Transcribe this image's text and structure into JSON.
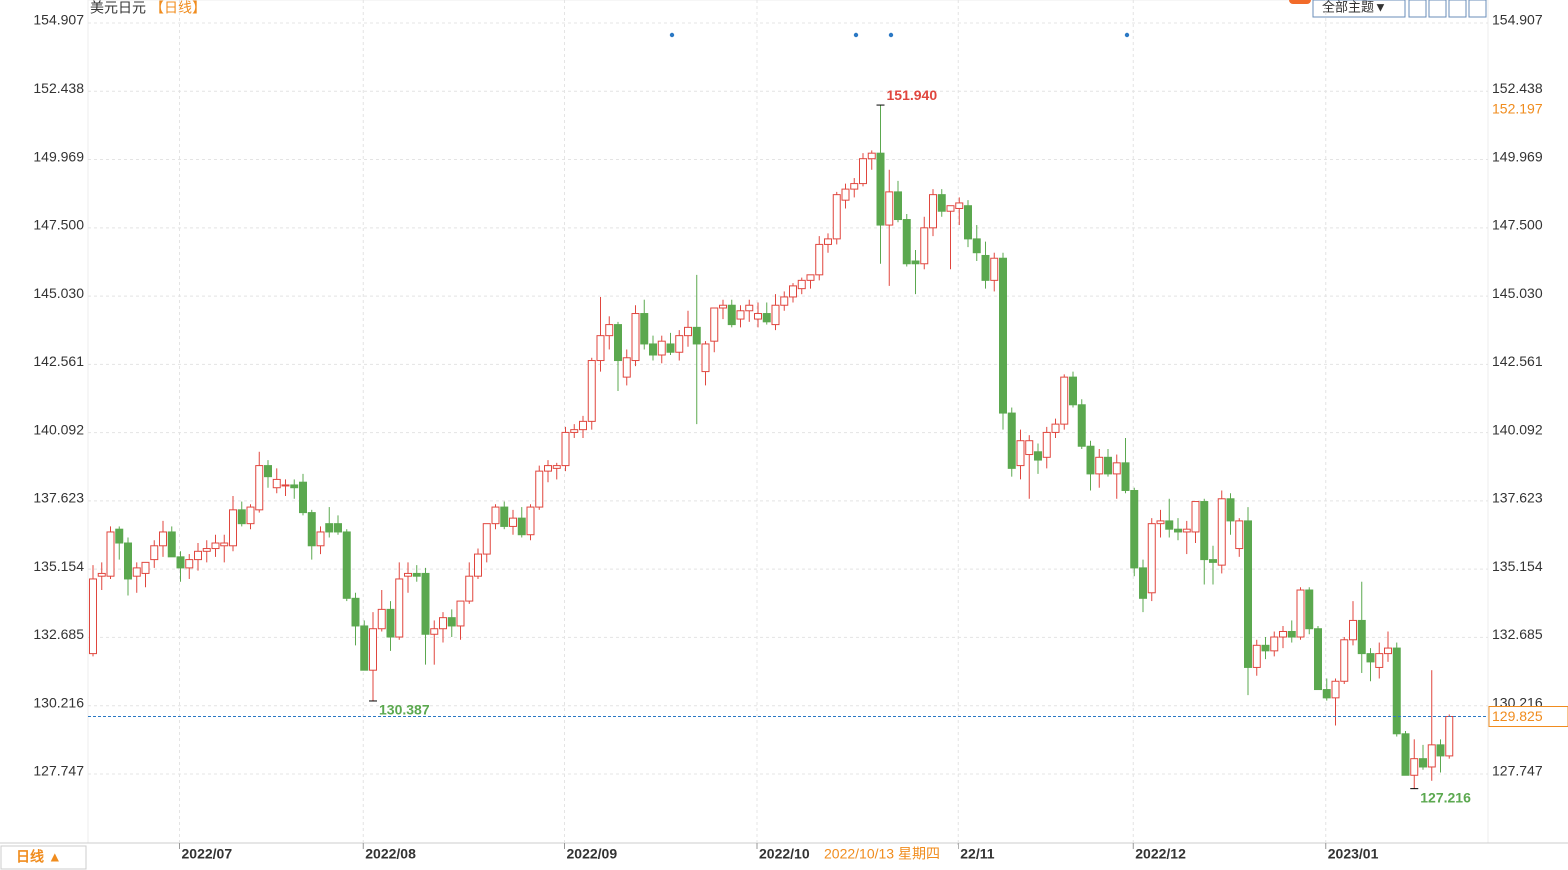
{
  "chart_data": {
    "type": "candlestick",
    "title": "美元日元",
    "period_tag": "【日线】",
    "period_button": "日线 ▲",
    "theme_button": "全部主题▼",
    "crosshair_date": "2022/10/13 星期四",
    "up_color": "#e0463e",
    "down_color": "#5ba84f",
    "grid": true,
    "ylim": [
      125.25,
      155.74
    ],
    "yticks": [
      154.907,
      152.438,
      149.969,
      {
        "value": 147.5,
        "label": "147.500"
      },
      {
        "value": 145.03,
        "label": "145.030"
      },
      142.561,
      140.092,
      137.623,
      135.154,
      132.685,
      130.216,
      127.747
    ],
    "xticks": [
      {
        "value": 10,
        "label": "2022/07"
      },
      {
        "value": 31,
        "label": "2022/08"
      },
      {
        "value": 54,
        "label": "2022/09"
      },
      {
        "value": 76,
        "label": "2022/10"
      },
      {
        "value": 99,
        "label": "22/11"
      },
      {
        "value": 119,
        "label": "2022/12"
      },
      {
        "value": 141,
        "label": "2023/01"
      }
    ],
    "annotations": [
      {
        "value": 151.94,
        "label": "151.940",
        "side": "high"
      },
      {
        "value": 130.387,
        "label": "130.387",
        "side": "low"
      },
      {
        "value": 127.216,
        "label": "127.216",
        "side": "low"
      }
    ],
    "last_price": {
      "value": 129.825,
      "label": "129.825"
    },
    "marker_price": {
      "value": 152.197,
      "label": "152.197"
    },
    "candles": [
      [
        132.1,
        135.3,
        132.0,
        134.8
      ],
      [
        134.9,
        135.4,
        134.4,
        135.0
      ],
      [
        134.9,
        136.7,
        134.8,
        136.5
      ],
      [
        136.6,
        136.7,
        135.5,
        136.1
      ],
      [
        136.1,
        136.3,
        134.2,
        134.8
      ],
      [
        134.9,
        135.4,
        134.3,
        135.2
      ],
      [
        135.0,
        135.4,
        134.5,
        135.4
      ],
      [
        135.5,
        136.2,
        135.2,
        136.0
      ],
      [
        136.0,
        136.9,
        135.6,
        136.5
      ],
      [
        136.5,
        136.7,
        135.6,
        135.6
      ],
      [
        135.6,
        135.8,
        134.7,
        135.2
      ],
      [
        135.2,
        135.7,
        134.8,
        135.5
      ],
      [
        135.5,
        136.1,
        135.1,
        135.8
      ],
      [
        135.8,
        136.2,
        135.4,
        135.9
      ],
      [
        135.9,
        136.4,
        135.6,
        136.1
      ],
      [
        136.0,
        136.4,
        135.4,
        136.1
      ],
      [
        136.0,
        137.8,
        135.8,
        137.3
      ],
      [
        137.3,
        137.6,
        136.7,
        136.8
      ],
      [
        136.8,
        137.5,
        136.6,
        137.4
      ],
      [
        137.3,
        139.4,
        137.2,
        138.9
      ],
      [
        138.9,
        139.1,
        138.1,
        138.5
      ],
      [
        138.1,
        138.8,
        137.9,
        138.4
      ],
      [
        138.2,
        138.4,
        137.8,
        138.2
      ],
      [
        138.2,
        138.4,
        137.7,
        138.1
      ],
      [
        138.3,
        138.6,
        137.1,
        137.2
      ],
      [
        137.2,
        137.3,
        135.5,
        136.0
      ],
      [
        136.0,
        136.7,
        135.7,
        136.5
      ],
      [
        136.8,
        137.4,
        136.3,
        136.5
      ],
      [
        136.8,
        137.1,
        136.4,
        136.5
      ],
      [
        136.5,
        136.6,
        134.0,
        134.1
      ],
      [
        134.1,
        134.3,
        132.4,
        133.1
      ],
      [
        133.1,
        133.3,
        131.5,
        131.5
      ],
      [
        131.5,
        133.6,
        130.387,
        133.0
      ],
      [
        133.0,
        134.4,
        132.9,
        133.7
      ],
      [
        133.7,
        134.0,
        132.2,
        132.7
      ],
      [
        132.7,
        135.4,
        132.6,
        134.8
      ],
      [
        134.9,
        135.4,
        134.3,
        135.0
      ],
      [
        135.0,
        135.3,
        134.7,
        134.9
      ],
      [
        135.0,
        135.2,
        131.7,
        132.8
      ],
      [
        132.8,
        133.3,
        131.7,
        133.0
      ],
      [
        133.0,
        133.6,
        132.5,
        133.4
      ],
      [
        133.4,
        133.7,
        132.7,
        133.1
      ],
      [
        133.1,
        134.0,
        132.6,
        134.0
      ],
      [
        134.0,
        135.4,
        133.9,
        134.9
      ],
      [
        134.9,
        135.9,
        134.8,
        135.7
      ],
      [
        135.7,
        136.8,
        135.4,
        136.8
      ],
      [
        136.8,
        137.5,
        136.6,
        137.4
      ],
      [
        137.4,
        137.6,
        136.6,
        136.7
      ],
      [
        136.7,
        137.3,
        136.4,
        137.0
      ],
      [
        137.0,
        137.4,
        136.3,
        136.4
      ],
      [
        136.4,
        137.5,
        136.2,
        137.4
      ],
      [
        137.4,
        138.9,
        137.3,
        138.7
      ],
      [
        138.7,
        139.1,
        138.3,
        138.9
      ],
      [
        138.8,
        139.0,
        138.4,
        138.9
      ],
      [
        138.9,
        140.3,
        138.7,
        140.1
      ],
      [
        140.1,
        140.4,
        139.9,
        140.2
      ],
      [
        140.2,
        140.7,
        139.9,
        140.5
      ],
      [
        140.5,
        142.8,
        140.2,
        142.7
      ],
      [
        142.7,
        145.0,
        142.3,
        143.6
      ],
      [
        143.6,
        144.3,
        143.1,
        144.0
      ],
      [
        144.0,
        144.1,
        141.6,
        142.7
      ],
      [
        142.1,
        143.1,
        141.8,
        142.8
      ],
      [
        142.7,
        144.7,
        142.5,
        144.4
      ],
      [
        144.4,
        144.9,
        143.1,
        143.3
      ],
      [
        143.3,
        143.6,
        142.7,
        142.9
      ],
      [
        142.9,
        143.6,
        142.6,
        143.4
      ],
      [
        143.3,
        143.7,
        142.9,
        143.0
      ],
      [
        143.0,
        143.8,
        142.7,
        143.6
      ],
      [
        143.6,
        144.5,
        143.2,
        143.9
      ],
      [
        143.9,
        145.8,
        140.4,
        143.3
      ],
      [
        142.3,
        143.4,
        141.8,
        143.3
      ],
      [
        143.4,
        144.6,
        143.0,
        144.6
      ],
      [
        144.6,
        144.9,
        144.2,
        144.7
      ],
      [
        144.7,
        144.9,
        143.9,
        144.0
      ],
      [
        144.2,
        144.7,
        143.9,
        144.5
      ],
      [
        144.5,
        144.9,
        144.1,
        144.7
      ],
      [
        144.2,
        144.8,
        143.9,
        144.4
      ],
      [
        144.4,
        144.8,
        144.0,
        144.1
      ],
      [
        144.0,
        145.1,
        143.8,
        144.7
      ],
      [
        144.7,
        145.2,
        144.5,
        145.0
      ],
      [
        145.0,
        145.5,
        144.8,
        145.4
      ],
      [
        145.3,
        145.7,
        145.1,
        145.6
      ],
      [
        145.6,
        145.8,
        145.3,
        145.8
      ],
      [
        145.8,
        147.2,
        145.6,
        146.9
      ],
      [
        146.9,
        147.3,
        146.6,
        147.1
      ],
      [
        147.1,
        148.8,
        146.9,
        148.7
      ],
      [
        148.5,
        149.1,
        148.2,
        148.9
      ],
      [
        148.9,
        149.3,
        148.6,
        149.1
      ],
      [
        149.1,
        150.2,
        149.0,
        150.0
      ],
      [
        150.0,
        150.3,
        149.6,
        150.2
      ],
      [
        150.2,
        151.94,
        146.2,
        147.6
      ],
      [
        147.6,
        149.6,
        145.4,
        148.8
      ],
      [
        148.8,
        149.2,
        147.7,
        147.8
      ],
      [
        147.8,
        148.0,
        146.1,
        146.2
      ],
      [
        146.3,
        146.7,
        145.1,
        146.2
      ],
      [
        146.2,
        147.9,
        146.0,
        147.5
      ],
      [
        147.5,
        148.9,
        147.2,
        148.7
      ],
      [
        148.7,
        148.9,
        147.9,
        148.1
      ],
      [
        148.1,
        148.3,
        146.0,
        148.3
      ],
      [
        148.2,
        148.6,
        147.6,
        148.4
      ],
      [
        148.3,
        148.5,
        146.8,
        147.1
      ],
      [
        147.1,
        147.6,
        146.3,
        146.6
      ],
      [
        146.5,
        147.0,
        145.3,
        145.6
      ],
      [
        145.6,
        146.6,
        145.2,
        146.4
      ],
      [
        146.4,
        146.6,
        140.2,
        140.8
      ],
      [
        140.8,
        141.0,
        138.5,
        138.8
      ],
      [
        138.9,
        140.2,
        138.4,
        139.8
      ],
      [
        139.3,
        140.0,
        137.7,
        139.8
      ],
      [
        139.4,
        139.7,
        138.6,
        139.1
      ],
      [
        139.2,
        140.3,
        138.8,
        140.1
      ],
      [
        140.1,
        140.6,
        139.9,
        140.4
      ],
      [
        140.4,
        142.2,
        140.2,
        142.1
      ],
      [
        142.1,
        142.3,
        141.0,
        141.1
      ],
      [
        141.1,
        141.3,
        139.5,
        139.6
      ],
      [
        139.6,
        139.8,
        138.0,
        138.6
      ],
      [
        138.6,
        139.5,
        138.1,
        139.2
      ],
      [
        139.2,
        139.5,
        138.5,
        138.6
      ],
      [
        138.6,
        139.3,
        137.7,
        139.0
      ],
      [
        139.0,
        139.9,
        137.9,
        138.0
      ],
      [
        138.0,
        138.1,
        134.9,
        135.2
      ],
      [
        135.2,
        135.5,
        133.6,
        134.1
      ],
      [
        134.3,
        137.0,
        134.0,
        136.8
      ],
      [
        136.8,
        137.3,
        136.3,
        136.9
      ],
      [
        136.9,
        137.7,
        136.3,
        136.6
      ],
      [
        136.6,
        137.0,
        136.2,
        136.5
      ],
      [
        136.5,
        136.9,
        135.7,
        136.6
      ],
      [
        136.5,
        137.6,
        136.1,
        137.6
      ],
      [
        137.6,
        137.7,
        134.6,
        135.5
      ],
      [
        135.5,
        136.0,
        134.6,
        135.4
      ],
      [
        135.3,
        138.0,
        135.0,
        137.7
      ],
      [
        137.7,
        137.9,
        136.4,
        136.9
      ],
      [
        135.9,
        137.0,
        135.6,
        136.9
      ],
      [
        136.9,
        137.4,
        130.6,
        131.6
      ],
      [
        131.6,
        132.6,
        131.3,
        132.4
      ],
      [
        132.4,
        132.7,
        131.9,
        132.2
      ],
      [
        132.2,
        132.9,
        132.0,
        132.7
      ],
      [
        132.7,
        133.1,
        132.3,
        132.9
      ],
      [
        132.9,
        133.3,
        132.5,
        132.7
      ],
      [
        132.7,
        134.5,
        132.6,
        134.4
      ],
      [
        134.4,
        134.5,
        132.8,
        133.0
      ],
      [
        133.0,
        133.1,
        130.8,
        130.8
      ],
      [
        130.8,
        131.2,
        130.4,
        130.5
      ],
      [
        130.5,
        131.2,
        129.5,
        131.1
      ],
      [
        131.1,
        132.7,
        131.0,
        132.6
      ],
      [
        132.6,
        134.0,
        132.4,
        133.3
      ],
      [
        133.3,
        134.7,
        131.4,
        132.1
      ],
      [
        132.1,
        132.3,
        131.1,
        131.8
      ],
      [
        131.6,
        132.5,
        131.2,
        132.1
      ],
      [
        132.1,
        132.9,
        131.8,
        132.3
      ],
      [
        132.3,
        132.5,
        129.1,
        129.2
      ],
      [
        129.2,
        129.3,
        127.7,
        127.7
      ],
      [
        127.7,
        129.0,
        127.216,
        128.3
      ],
      [
        128.3,
        128.8,
        127.9,
        128.0
      ],
      [
        128.0,
        131.5,
        127.5,
        128.8
      ],
      [
        128.8,
        129.0,
        127.8,
        128.4
      ],
      [
        128.4,
        129.9,
        128.3,
        129.825
      ]
    ]
  }
}
